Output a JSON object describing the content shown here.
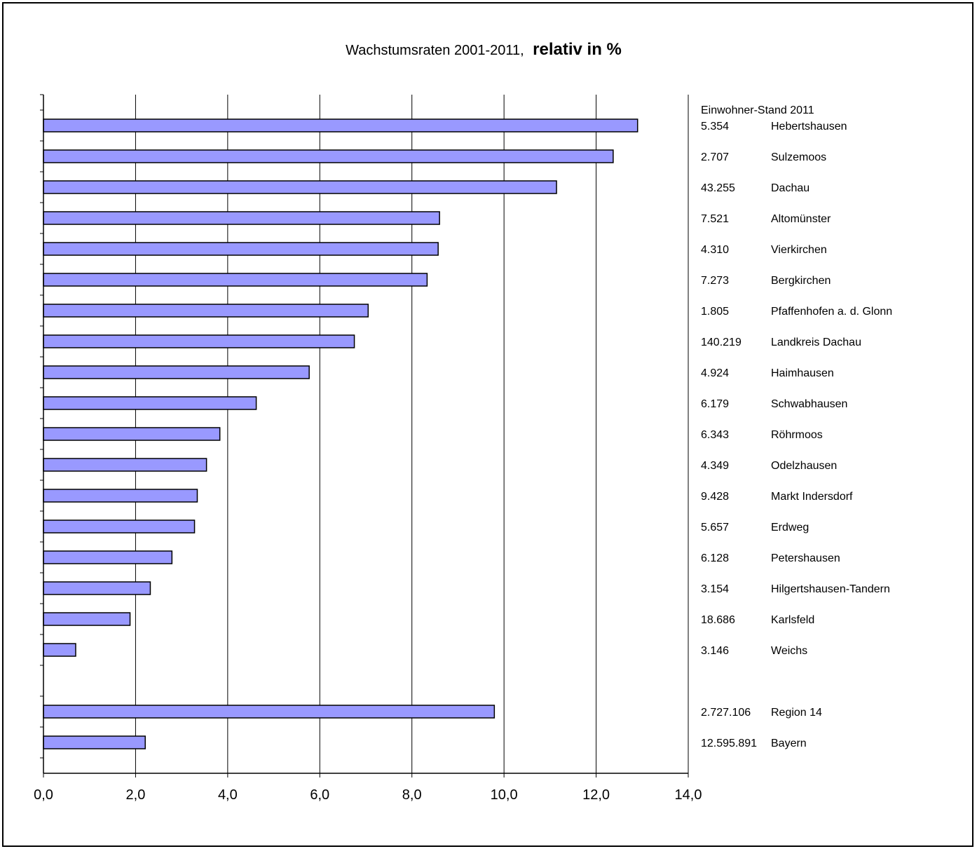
{
  "chart_data": {
    "type": "bar",
    "orientation": "horizontal",
    "title_normal": "Wachstumsraten 2001-2011,",
    "title_bold": "relativ in %",
    "xlabel": "",
    "ylabel": "",
    "xlim": [
      0,
      14
    ],
    "x_ticks": [
      "0,0",
      "2,0",
      "4,0",
      "6,0",
      "8,0",
      "10,0",
      "12,0",
      "14,0"
    ],
    "grid": "vertical",
    "bar_color": "#9999ff",
    "side_header": "Einwohner-Stand 2011",
    "rows": [
      {
        "name": "Hebertshausen",
        "population": "5.354",
        "value": 12.9
      },
      {
        "name": "Sulzemoos",
        "population": "2.707",
        "value": 12.37
      },
      {
        "name": "Dachau",
        "population": "43.255",
        "value": 11.14
      },
      {
        "name": "Altomünster",
        "population": "7.521",
        "value": 8.6
      },
      {
        "name": "Vierkirchen",
        "population": "4.310",
        "value": 8.57
      },
      {
        "name": "Bergkirchen",
        "population": "7.273",
        "value": 8.33
      },
      {
        "name": "Pfaffenhofen a. d. Glonn",
        "population": "1.805",
        "value": 7.05
      },
      {
        "name": "Landkreis Dachau",
        "population": "140.219",
        "value": 6.75
      },
      {
        "name": "Haimhausen",
        "population": "4.924",
        "value": 5.77
      },
      {
        "name": "Schwabhausen",
        "population": "6.179",
        "value": 4.62
      },
      {
        "name": "Röhrmoos",
        "population": "6.343",
        "value": 3.83
      },
      {
        "name": "Odelzhausen",
        "population": "4.349",
        "value": 3.54
      },
      {
        "name": "Markt Indersdorf",
        "population": "9.428",
        "value": 3.34
      },
      {
        "name": "Erdweg",
        "population": "5.657",
        "value": 3.28
      },
      {
        "name": "Petershausen",
        "population": "6.128",
        "value": 2.79
      },
      {
        "name": "Hilgertshausen-Tandern",
        "population": "3.154",
        "value": 2.32
      },
      {
        "name": "Karlsfeld",
        "population": "18.686",
        "value": 1.88
      },
      {
        "name": "Weichs",
        "population": "3.146",
        "value": 0.7
      },
      {
        "name": "",
        "population": "",
        "value": null
      },
      {
        "name": "Region 14",
        "population": "2.727.106",
        "value": 9.79
      },
      {
        "name": "Bayern",
        "population": "12.595.891",
        "value": 2.21
      }
    ]
  }
}
